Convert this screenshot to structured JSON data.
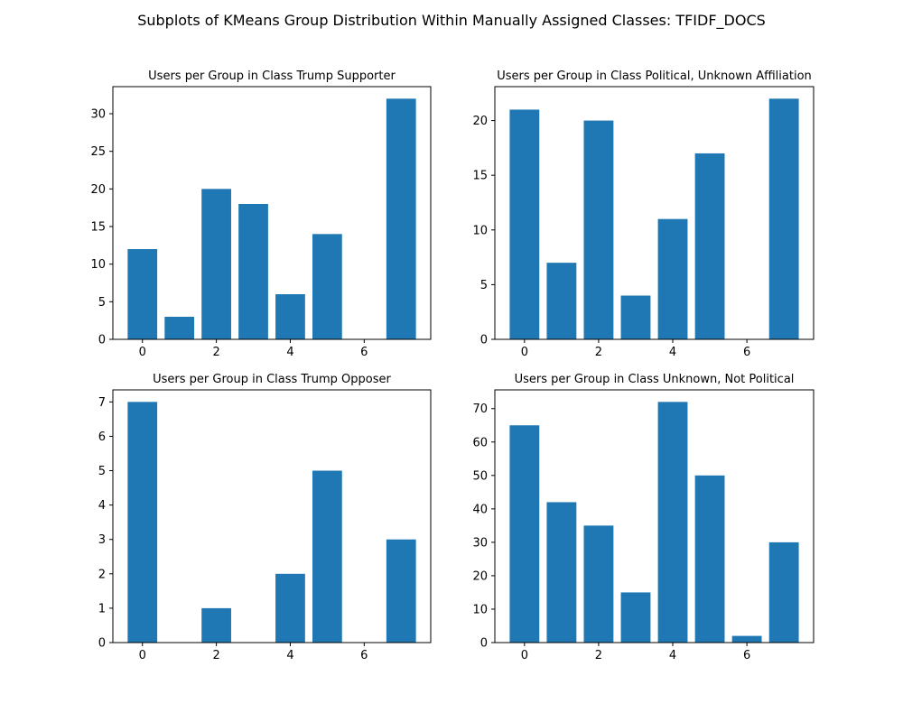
{
  "figure": {
    "title": "Subplots of KMeans Group Distribution Within Manually Assigned Classes: TFIDF_DOCS",
    "bar_color": "#1f77b4"
  },
  "chart_data": [
    {
      "type": "bar",
      "title": "Users per Group in Class Trump Supporter",
      "x": [
        0,
        1,
        2,
        3,
        4,
        5,
        6,
        7
      ],
      "values": [
        12,
        3,
        20,
        18,
        6,
        14,
        0,
        32
      ],
      "xlim": [
        -0.8,
        7.8
      ],
      "ylim": [
        0,
        33.6
      ],
      "xticks": [
        0,
        2,
        4,
        6
      ],
      "yticks": [
        0,
        5,
        10,
        15,
        20,
        25,
        30
      ]
    },
    {
      "type": "bar",
      "title": "Users per Group in Class Political, Unknown Affiliation",
      "x": [
        0,
        1,
        2,
        3,
        4,
        5,
        6,
        7
      ],
      "values": [
        21,
        7,
        20,
        4,
        11,
        17,
        0,
        22
      ],
      "xlim": [
        -0.8,
        7.8
      ],
      "ylim": [
        0,
        23.1
      ],
      "xticks": [
        0,
        2,
        4,
        6
      ],
      "yticks": [
        0,
        5,
        10,
        15,
        20
      ]
    },
    {
      "type": "bar",
      "title": "Users per Group in Class Trump Opposer",
      "x": [
        0,
        1,
        2,
        3,
        4,
        5,
        6,
        7
      ],
      "values": [
        7,
        0,
        1,
        0,
        2,
        5,
        0,
        3
      ],
      "xlim": [
        -0.8,
        7.8
      ],
      "ylim": [
        0,
        7.35
      ],
      "xticks": [
        0,
        2,
        4,
        6
      ],
      "yticks": [
        0,
        1,
        2,
        3,
        4,
        5,
        6,
        7
      ]
    },
    {
      "type": "bar",
      "title": "Users per Group in Class Unknown, Not Political",
      "x": [
        0,
        1,
        2,
        3,
        4,
        5,
        6,
        7
      ],
      "values": [
        65,
        42,
        35,
        15,
        72,
        50,
        2,
        30
      ],
      "xlim": [
        -0.8,
        7.8
      ],
      "ylim": [
        0,
        75.6
      ],
      "xticks": [
        0,
        2,
        4,
        6
      ],
      "yticks": [
        0,
        10,
        20,
        30,
        40,
        50,
        60,
        70
      ]
    }
  ]
}
